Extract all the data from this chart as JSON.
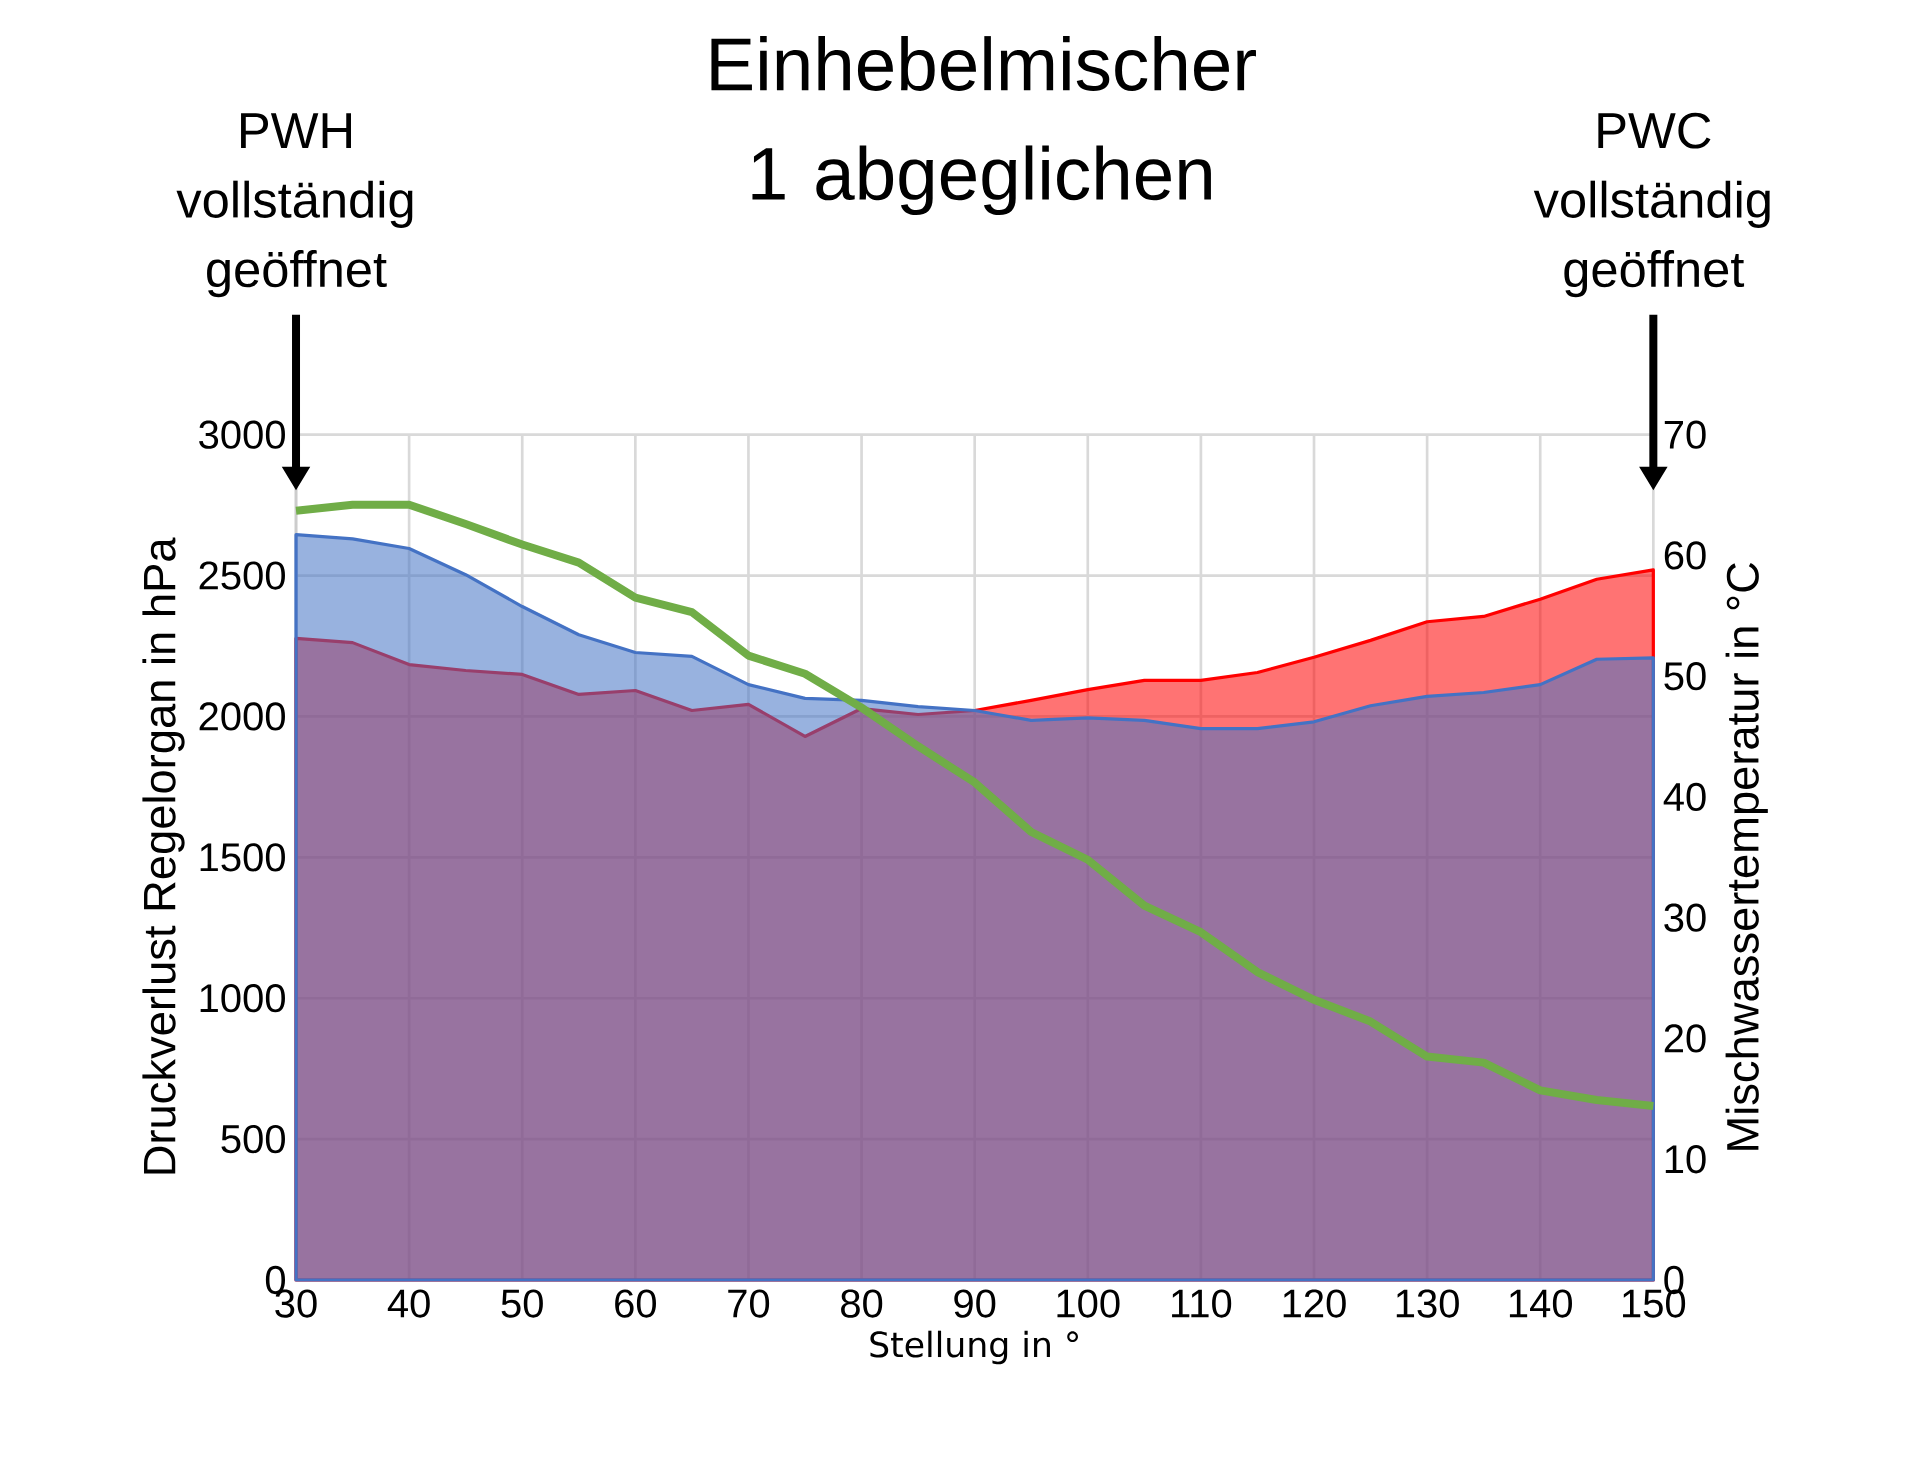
{
  "chart_data": {
    "type": "area",
    "title": "Einhebelmischer 1 abgeglichen",
    "xlabel": "Stellung in °",
    "ylabel": "Druckverlust Regelorgan in hPa",
    "y2label": "Mischwassertemperatur in °C",
    "x": [
      30,
      35,
      40,
      45,
      50,
      55,
      60,
      65,
      70,
      75,
      80,
      85,
      90,
      95,
      100,
      105,
      110,
      115,
      120,
      125,
      130,
      135,
      140,
      145,
      150
    ],
    "series": [
      {
        "color": "#ff0000",
        "values": [
          2277,
          2262,
          2184,
          2163,
          2149,
          2078,
          2092,
          2021,
          2043,
          1929,
          2028,
          2007,
          2021,
          2057,
          2095,
          2128,
          2128,
          2156,
          2210,
          2270,
          2336,
          2355,
          2416,
          2487,
          2520
        ]
      },
      {
        "color": "#4472c4",
        "values": [
          2645,
          2630,
          2596,
          2503,
          2390,
          2290,
          2227,
          2213,
          2113,
          2064,
          2057,
          2035,
          2021,
          1986,
          1995,
          1986,
          1957,
          1957,
          1981,
          2038,
          2071,
          2085,
          2113,
          2203,
          2208
        ]
      },
      {
        "type": "line",
        "axis": "y2",
        "color": "#70ad47",
        "values": [
          63.7,
          64.2,
          64.2,
          62.6,
          60.9,
          59.4,
          56.5,
          55.3,
          51.7,
          50.2,
          47.4,
          44.2,
          41.2,
          37.1,
          34.8,
          31.0,
          28.8,
          25.5,
          23.2,
          21.4,
          18.5,
          18.0,
          15.7,
          14.9,
          14.4
        ]
      }
    ],
    "xlim": [
      30,
      150
    ],
    "xticks": [
      30,
      40,
      50,
      60,
      70,
      80,
      90,
      100,
      110,
      120,
      130,
      140,
      150
    ],
    "ylim": [
      0,
      3000
    ],
    "yticks": [
      0,
      500,
      1000,
      1500,
      2000,
      2500,
      3000
    ],
    "y2lim": [
      0,
      70
    ],
    "y2ticks": [
      0,
      10,
      20,
      30,
      40,
      50,
      60,
      70
    ],
    "grid": true,
    "marker": "none",
    "line_style": "solid",
    "annotations": [
      "PWH vollständig geöffnet",
      "PWC vollständig geöffnet"
    ]
  }
}
